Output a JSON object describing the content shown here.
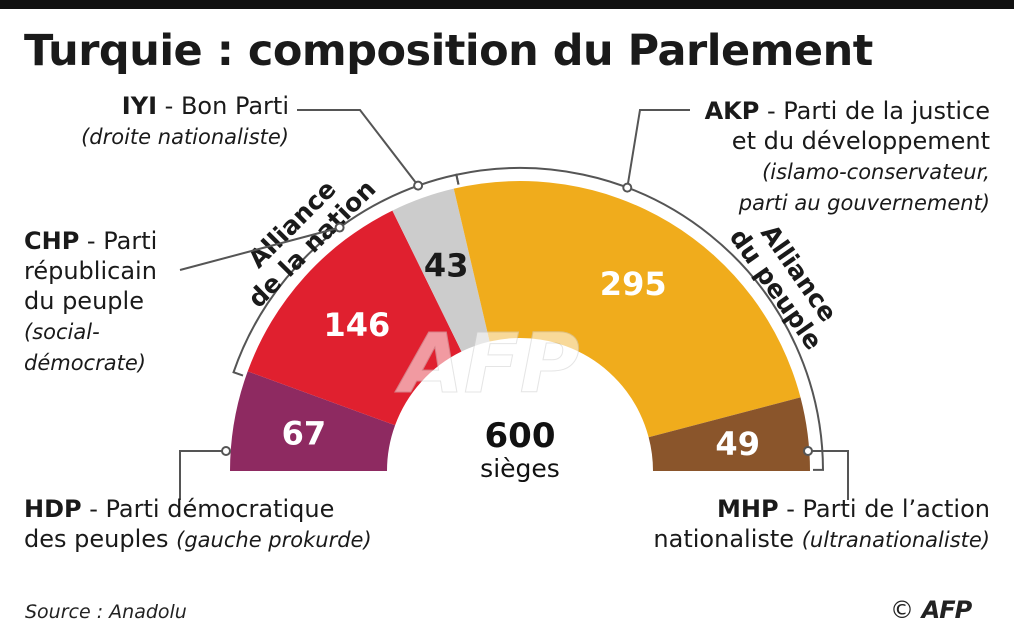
{
  "title": "Turquie : composition du Parlement",
  "total": {
    "value": "600",
    "unit": "sièges"
  },
  "chart_data": {
    "type": "pie",
    "variant": "half-donut parliament",
    "title": "Turquie : composition du Parlement",
    "total_seats": 600,
    "series": [
      {
        "party": "HDP",
        "name": "Parti démocratique des peuples",
        "ideology": "gauche prokurde",
        "seats": 67,
        "color": "#8e2a61"
      },
      {
        "party": "CHP",
        "name": "Parti républicain du peuple",
        "ideology": "social-démocrate",
        "seats": 146,
        "color": "#e0202f"
      },
      {
        "party": "IYI",
        "name": "Bon Parti",
        "ideology": "droite nationaliste",
        "seats": 43,
        "color": "#cccccc"
      },
      {
        "party": "AKP",
        "name": "Parti de la justice et du développement",
        "ideology": "islamo-conservateur, parti au gouvernement",
        "seats": 295,
        "color": "#f0ac1c"
      },
      {
        "party": "MHP",
        "name": "Parti de l’action nationaliste",
        "ideology": "ultranationaliste",
        "seats": 49,
        "color": "#8a552b"
      }
    ],
    "alliances": [
      {
        "name": "Alliance de la nation",
        "line1": "Alliance",
        "line2": "de la nation",
        "members": [
          "CHP",
          "IYI"
        ]
      },
      {
        "name": "Alliance du peuple",
        "line1": "Alliance",
        "line2": "du peuple",
        "members": [
          "AKP",
          "MHP"
        ]
      }
    ]
  },
  "labels": {
    "iyi": {
      "abbr": "IYI",
      "name": "Bon Parti",
      "desc": "(droite nationaliste)"
    },
    "akp": {
      "abbr": "AKP",
      "name_line1": "Parti de la justice",
      "name_line2": "et du développement",
      "desc_line1": "(islamo-conservateur,",
      "desc_line2": "parti au gouvernement)"
    },
    "chp": {
      "abbr": "CHP",
      "name_line1": "Parti",
      "name_line2": "républicain",
      "name_line3": "du peuple",
      "desc_line1": "(social-",
      "desc_line2": "démocrate)"
    },
    "hdp": {
      "abbr": "HDP",
      "name_line1": "Parti démocratique",
      "name_line2": "des peuples",
      "desc": "(gauche prokurde)"
    },
    "mhp": {
      "abbr": "MHP",
      "name_line1": "Parti de l’action",
      "name_line2": "nationaliste",
      "desc": "(ultranationaliste)"
    }
  },
  "watermark": "AFP",
  "source": "Source : Anadolu",
  "credit": {
    "symbol": "©",
    "agency": "AFP"
  },
  "colors": {
    "line": "#555555",
    "text": "#1a1a1a",
    "value_text": "#ffffff",
    "watermark": "#ffffff"
  }
}
